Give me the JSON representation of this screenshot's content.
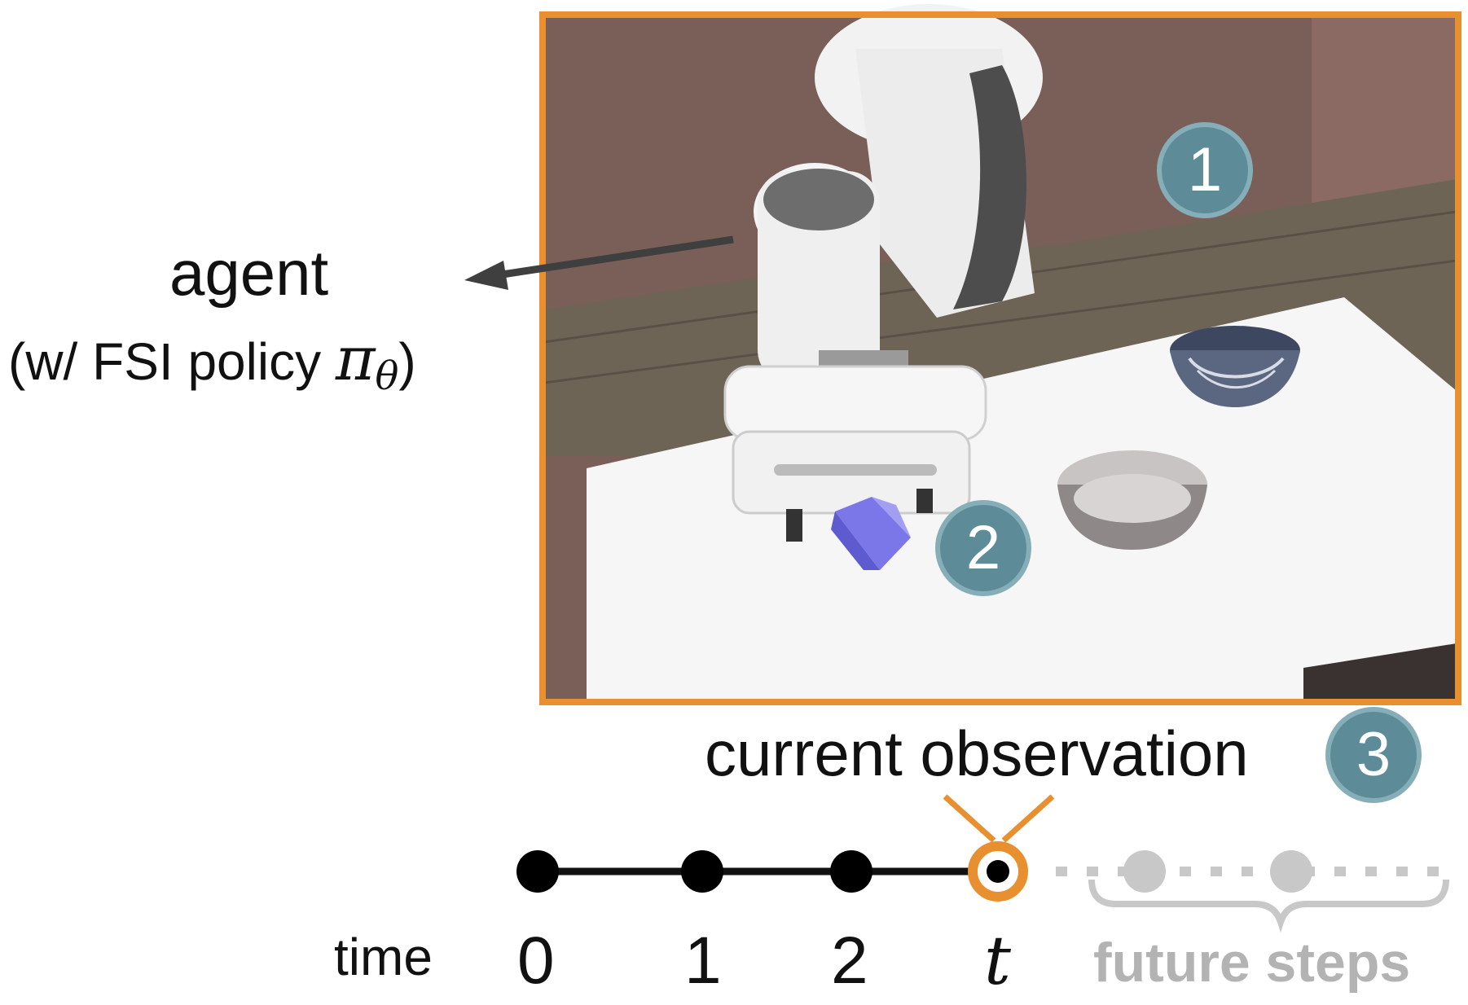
{
  "agent_label": "agent",
  "agent_sublabel_prefix": "(w/ FSI policy ",
  "agent_sublabel_symbol": "π",
  "agent_sublabel_subscript": "θ",
  "agent_sublabel_suffix": ")",
  "observation_label": "current observation",
  "badges": [
    "1",
    "2",
    "3"
  ],
  "timeline": {
    "axis_label": "time",
    "ticks": [
      "0",
      "1",
      "2",
      "t"
    ],
    "future_label": "future steps"
  },
  "colors": {
    "accent_orange": "#e8902f",
    "badge_teal": "#5d8c98",
    "future_gray": "#b3b3b3"
  }
}
